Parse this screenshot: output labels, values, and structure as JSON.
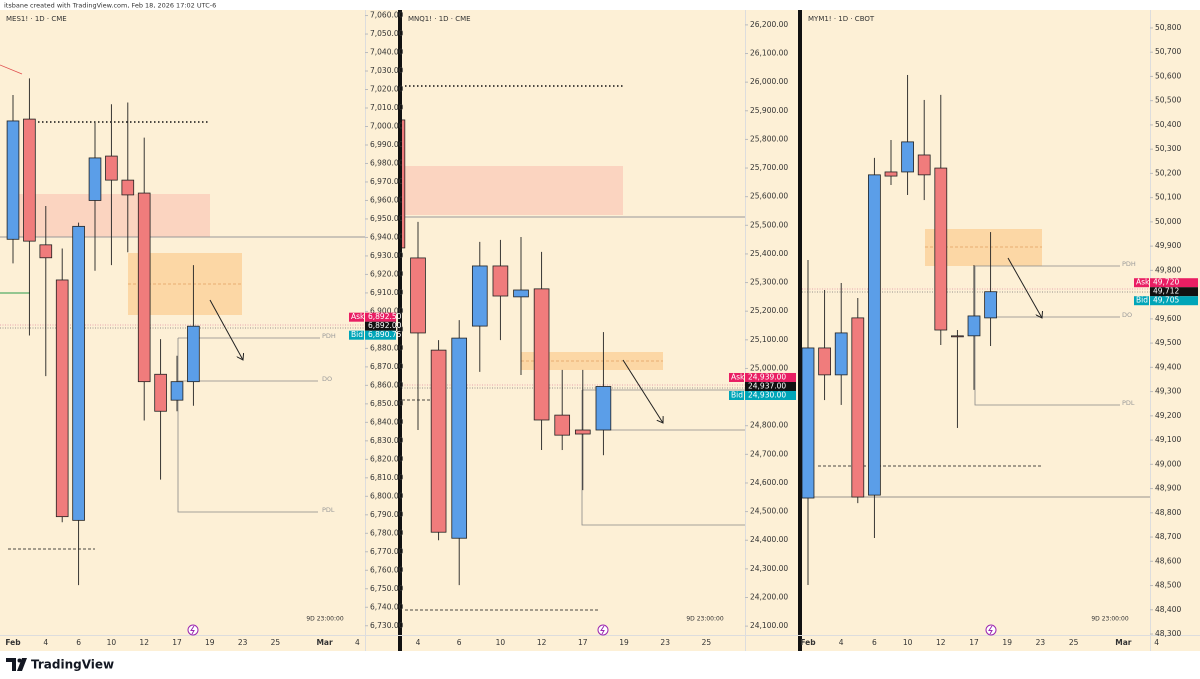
{
  "header": {
    "text": "itsbane created with TradingView.com, Feb 18, 2026 17:02 UTC-6"
  },
  "footer": {
    "brand": "TradingView"
  },
  "chart_data": [
    {
      "type": "candlestick",
      "title": "MES1! · 1D · CME",
      "categories": [
        "Feb",
        null,
        "4",
        null,
        "6",
        null,
        "10",
        null,
        "12",
        null,
        "17",
        null,
        "19",
        null,
        "23",
        null,
        "25",
        null,
        null,
        "Mar",
        null,
        "4"
      ],
      "open": [
        6939,
        7004,
        6936,
        6917,
        6787,
        6960,
        6984,
        6971,
        6964,
        6866,
        6852,
        6862,
        null,
        null,
        null,
        null,
        null,
        null,
        null,
        null,
        null,
        null
      ],
      "high": [
        7017,
        7026,
        6957,
        6934,
        6948,
        7002,
        7012,
        7013,
        6994,
        6885,
        6876,
        6925,
        null,
        null,
        null,
        null,
        null,
        null,
        null,
        null,
        null,
        null
      ],
      "low": [
        6926,
        6887,
        6865,
        6786,
        6752,
        6922,
        6925,
        6932,
        6841,
        6809,
        6846,
        6849,
        null,
        null,
        null,
        null,
        null,
        null,
        null,
        null,
        null,
        null
      ],
      "close": [
        7003,
        6938,
        6929,
        6789,
        6946,
        6983,
        6971,
        6963,
        6862,
        6846,
        6862,
        6892,
        null,
        null,
        null,
        null,
        null,
        null,
        null,
        null,
        null,
        null
      ],
      "up_color": "#5b9ee8",
      "down_color": "#f07c7c",
      "grid": false,
      "ylim": [
        6725,
        7063
      ],
      "yticks": [
        {
          "value": 6730,
          "label": "6,730.00"
        },
        {
          "value": 6740,
          "label": "6,740.00"
        },
        {
          "value": 6750,
          "label": "6,750.00"
        },
        {
          "value": 6760,
          "label": "6,760.00"
        },
        {
          "value": 6770,
          "label": "6,770.00"
        },
        {
          "value": 6780,
          "label": "6,780.00"
        },
        {
          "value": 6790,
          "label": "6,790.00"
        },
        {
          "value": 6800,
          "label": "6,800.00"
        },
        {
          "value": 6810,
          "label": "6,810.00"
        },
        {
          "value": 6820,
          "label": "6,820.00"
        },
        {
          "value": 6830,
          "label": "6,830.00"
        },
        {
          "value": 6840,
          "label": "6,840.00"
        },
        {
          "value": 6850,
          "label": "6,850.00"
        },
        {
          "value": 6860,
          "label": "6,860.00"
        },
        {
          "value": 6870,
          "label": "6,870.00"
        },
        {
          "value": 6880,
          "label": "6,880.00"
        },
        {
          "value": 6890,
          "label": "6,890.00"
        },
        {
          "value": 6900,
          "label": "6,900.00"
        },
        {
          "value": 6910,
          "label": "6,910.00"
        },
        {
          "value": 6920,
          "label": "6,920.00"
        },
        {
          "value": 6930,
          "label": "6,930.00"
        },
        {
          "value": 6940,
          "label": "6,940.00"
        },
        {
          "value": 6950,
          "label": "6,950.00"
        },
        {
          "value": 6960,
          "label": "6,960.00"
        },
        {
          "value": 6970,
          "label": "6,970.00"
        },
        {
          "value": 6980,
          "label": "6,980.00"
        },
        {
          "value": 6990,
          "label": "6,990.00"
        },
        {
          "value": 7000,
          "label": "7,000.00"
        },
        {
          "value": 7010,
          "label": "7,010.00"
        },
        {
          "value": 7020,
          "label": "7,020.00"
        },
        {
          "value": 7030,
          "label": "7,030.00"
        },
        {
          "value": 7040,
          "label": "7,040.00"
        },
        {
          "value": 7050,
          "label": "7,050.00"
        },
        {
          "value": 7060,
          "label": "7,060.00"
        }
      ],
      "quote": {
        "ask_text": "Ask",
        "ask": 6892.5,
        "ask_label": "6,892.50",
        "last": 6892,
        "last_label": "6,892.00",
        "bid_text": "Bid",
        "bid": 6890.75,
        "bid_label": "6,890.75"
      },
      "annotations": [
        "PDH",
        "DO",
        "PDL"
      ],
      "countdown": "9D 23:00:00"
    },
    {
      "type": "candlestick",
      "title": "MNQ1! · 1D · CME",
      "categories": [
        null,
        "4",
        null,
        "6",
        null,
        "10",
        null,
        "12",
        null,
        "17",
        null,
        "19",
        null,
        "23",
        null,
        "25",
        null
      ],
      "open": [
        25868,
        25386,
        25064,
        24407,
        25148,
        25358,
        25250,
        25278,
        24837,
        24785,
        24785,
        null,
        null,
        null,
        null,
        null,
        null
      ],
      "high": [
        25938,
        25512,
        25099,
        25169,
        25442,
        25449,
        25459,
        25407,
        24995,
        24995,
        25127,
        null,
        null,
        null,
        null,
        null,
        null
      ],
      "low": [
        25414,
        24785,
        24400,
        24243,
        24988,
        25099,
        24977,
        24715,
        24715,
        24575,
        24697,
        null,
        null,
        null,
        null,
        null,
        null
      ],
      "close": [
        25421,
        25124,
        24428,
        25106,
        25358,
        25253,
        25274,
        24820,
        24767,
        24771,
        24937,
        null,
        null,
        null,
        null,
        null,
        null
      ],
      "up_color": "#5b9ee8",
      "down_color": "#f07c7c",
      "grid": false,
      "ylim": [
        24069,
        26252
      ],
      "yticks": [
        {
          "value": 24100,
          "label": "24,100.00"
        },
        {
          "value": 24200,
          "label": "24,200.00"
        },
        {
          "value": 24300,
          "label": "24,300.00"
        },
        {
          "value": 24400,
          "label": "24,400.00"
        },
        {
          "value": 24500,
          "label": "24,500.00"
        },
        {
          "value": 24600,
          "label": "24,600.00"
        },
        {
          "value": 24700,
          "label": "24,700.00"
        },
        {
          "value": 24800,
          "label": "24,800.00"
        },
        {
          "value": 24900,
          "label": "24,900.00"
        },
        {
          "value": 25000,
          "label": "25,000.00"
        },
        {
          "value": 25100,
          "label": "25,100.00"
        },
        {
          "value": 25200,
          "label": "25,200.00"
        },
        {
          "value": 25300,
          "label": "25,300.00"
        },
        {
          "value": 25400,
          "label": "25,400.00"
        },
        {
          "value": 25500,
          "label": "25,500.00"
        },
        {
          "value": 25600,
          "label": "25,600.00"
        },
        {
          "value": 25700,
          "label": "25,700.00"
        },
        {
          "value": 25800,
          "label": "25,800.00"
        },
        {
          "value": 25900,
          "label": "25,900.00"
        },
        {
          "value": 26000,
          "label": "26,000.00"
        },
        {
          "value": 26100,
          "label": "26,100.00"
        },
        {
          "value": 26200,
          "label": "26,200.00"
        }
      ],
      "quote": {
        "ask_text": "Ask",
        "ask": 24939,
        "ask_label": "24,939.00",
        "last": 24937,
        "last_label": "24,937.00",
        "bid_text": "Bid",
        "bid": 24930,
        "bid_label": "24,930.00"
      },
      "annotations": [],
      "countdown": "9D 23:00:00"
    },
    {
      "type": "candlestick",
      "title": "MYM1! · 1D · CBOT",
      "categories": [
        "Feb",
        null,
        "4",
        null,
        "6",
        null,
        "10",
        null,
        "12",
        null,
        "17",
        null,
        "19",
        null,
        "23",
        null,
        "25",
        null,
        null,
        "Mar",
        null,
        "4"
      ],
      "open": [
        48861,
        49480,
        49369,
        49604,
        48873,
        50206,
        50206,
        50276,
        50222,
        49530,
        49530,
        49604,
        null,
        null,
        null,
        null,
        null,
        null,
        null,
        null,
        null,
        null
      ],
      "high": [
        49843,
        49719,
        49748,
        49686,
        50264,
        50338,
        50606,
        50503,
        50524,
        49554,
        49822,
        49958,
        null,
        null,
        null,
        null,
        null,
        null,
        null,
        null,
        null,
        null
      ],
      "low": [
        48502,
        49265,
        49245,
        48840,
        48696,
        50152,
        50111,
        50090,
        49492,
        49150,
        49307,
        49488,
        null,
        null,
        null,
        null,
        null,
        null,
        null,
        null,
        null,
        null
      ],
      "close": [
        49480,
        49369,
        49542,
        48865,
        50194,
        50189,
        50330,
        50194,
        49554,
        49527,
        49612,
        49712,
        null,
        null,
        null,
        null,
        null,
        null,
        null,
        null,
        null,
        null
      ],
      "up_color": "#5b9ee8",
      "down_color": "#f07c7c",
      "grid": false,
      "ylim": [
        48296,
        50874
      ],
      "yticks": [
        {
          "value": 48300,
          "label": "48,300"
        },
        {
          "value": 48400,
          "label": "48,400"
        },
        {
          "value": 48500,
          "label": "48,500"
        },
        {
          "value": 48600,
          "label": "48,600"
        },
        {
          "value": 48700,
          "label": "48,700"
        },
        {
          "value": 48800,
          "label": "48,800"
        },
        {
          "value": 48900,
          "label": "48,900"
        },
        {
          "value": 49000,
          "label": "49,000"
        },
        {
          "value": 49100,
          "label": "49,100"
        },
        {
          "value": 49200,
          "label": "49,200"
        },
        {
          "value": 49300,
          "label": "49,300"
        },
        {
          "value": 49400,
          "label": "49,400"
        },
        {
          "value": 49500,
          "label": "49,500"
        },
        {
          "value": 49600,
          "label": "49,600"
        },
        {
          "value": 49700,
          "label": "49,700"
        },
        {
          "value": 49800,
          "label": "49,800"
        },
        {
          "value": 49900,
          "label": "49,900"
        },
        {
          "value": 50000,
          "label": "50,000"
        },
        {
          "value": 50100,
          "label": "50,100"
        },
        {
          "value": 50200,
          "label": "50,200"
        },
        {
          "value": 50300,
          "label": "50,300"
        },
        {
          "value": 50400,
          "label": "50,400"
        },
        {
          "value": 50500,
          "label": "50,500"
        },
        {
          "value": 50600,
          "label": "50,600"
        },
        {
          "value": 50700,
          "label": "50,700"
        },
        {
          "value": 50800,
          "label": "50,800"
        }
      ],
      "quote": {
        "ask_text": "Ask",
        "ask": 49720,
        "ask_label": "49,720",
        "last": 49712,
        "last_label": "49,712",
        "bid_text": "Bid",
        "bid": 49705,
        "bid_label": "49,705"
      },
      "annotations": [
        "PDH",
        "DO",
        "PDL"
      ],
      "countdown": "9D 23:00:00"
    }
  ]
}
